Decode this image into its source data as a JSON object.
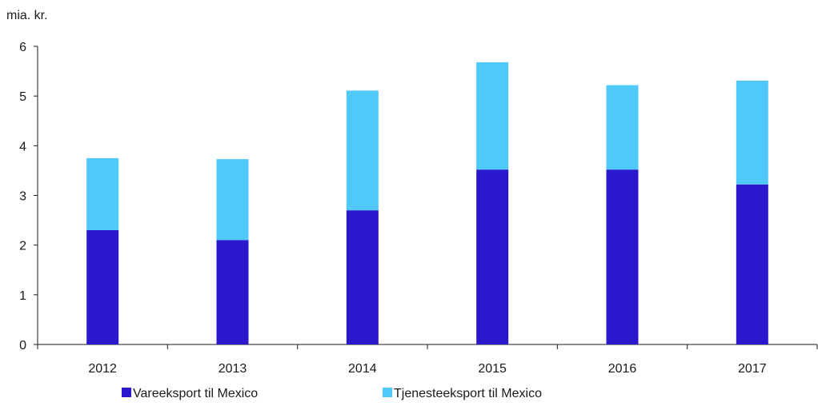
{
  "chart_data": {
    "type": "bar",
    "stacked": true,
    "unit_label": "mia. kr.",
    "categories": [
      "2012",
      "2013",
      "2014",
      "2015",
      "2016",
      "2017"
    ],
    "series": [
      {
        "name": "Vareeksport til Mexico",
        "color": "#2b18cc",
        "values": [
          2.3,
          2.1,
          2.7,
          3.52,
          3.52,
          3.22
        ]
      },
      {
        "name": "Tjenesteeksport til Mexico",
        "color": "#4fc9f9",
        "values": [
          1.45,
          1.63,
          2.41,
          2.16,
          1.7,
          2.09
        ]
      }
    ],
    "ylim": [
      0,
      6
    ],
    "yticks": [
      "0",
      "1",
      "2",
      "3",
      "4",
      "5",
      "6"
    ],
    "grid": false,
    "legend_position": "bottom"
  }
}
